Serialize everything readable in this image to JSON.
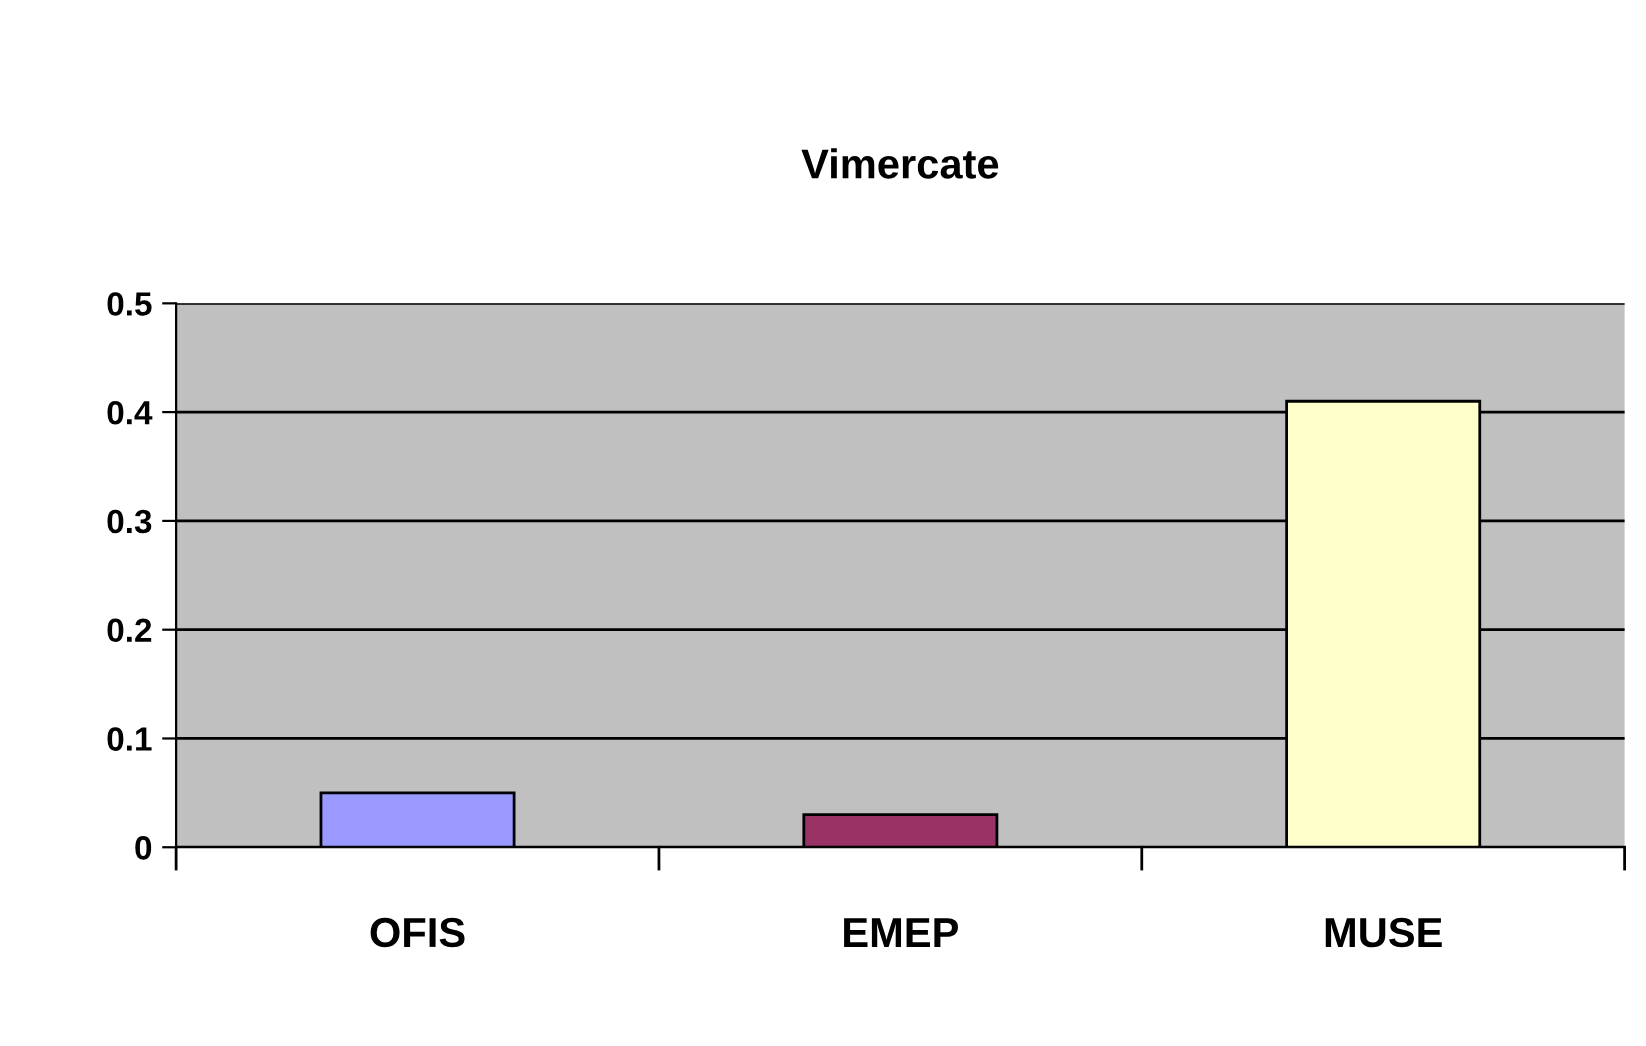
{
  "chart_data": {
    "type": "bar",
    "title": "Vimercate",
    "categories": [
      "OFIS",
      "EMEP",
      "MUSE"
    ],
    "values": [
      0.05,
      0.03,
      0.41
    ],
    "colors": [
      "#9999ff",
      "#993366",
      "#ffffcc"
    ],
    "ylim": [
      0,
      0.5
    ],
    "yticks": [
      0,
      0.1,
      0.2,
      0.3,
      0.4,
      0.5
    ],
    "grid": "y",
    "legend": false
  }
}
